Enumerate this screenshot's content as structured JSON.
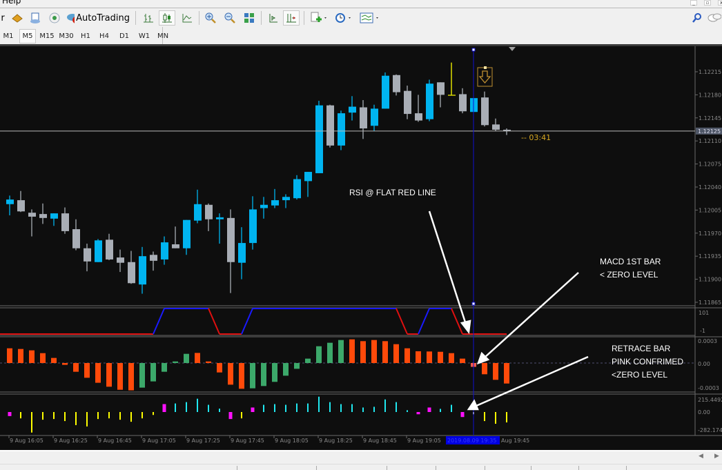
{
  "menubar": {
    "visible_item": "Help"
  },
  "toolbar": {
    "cut_label": "r",
    "autotrading_label": "AutoTrading",
    "icons": [
      "market-watch-icon",
      "navigator-icon",
      "signals-icon",
      "autotrading-icon",
      "bar-chart-icon",
      "candlestick-icon",
      "line-chart-icon",
      "zoom-in-icon",
      "zoom-out-icon",
      "tile-windows-icon",
      "chart-shift-icon",
      "autoscroll-icon",
      "indicators-icon",
      "periods-icon",
      "templates-icon",
      "search-icon",
      "chat-icon"
    ]
  },
  "timeframes": {
    "items": [
      "M1",
      "M5",
      "M15",
      "M30",
      "H1",
      "H4",
      "D1",
      "W1",
      "MN"
    ],
    "selected": "M5"
  },
  "chart": {
    "price_axis": [
      "1.12215",
      "1.12180",
      "1.12145",
      "1.12110",
      "1.12075",
      "1.12040",
      "1.12005",
      "1.11970",
      "1.11935",
      "1.11900",
      "1.11865"
    ],
    "bid_price": "1.12125",
    "bid_value": 1.12125,
    "countdown": "--  03:41",
    "colors": {
      "bull": "#00b4f0",
      "bear": "#a9aeb6",
      "doji": "#ffff00",
      "background": "#0e0e0e",
      "cursor_line": "#1010d0"
    },
    "time_axis": [
      "9 Aug 16:05",
      "9 Aug 16:25",
      "9 Aug 16:45",
      "9 Aug 17:05",
      "9 Aug 17:25",
      "9 Aug 17:45",
      "9 Aug 18:05",
      "9 Aug 18:25",
      "9 Aug 18:45",
      "9 Aug 19:05"
    ],
    "cursor_time": "2019.08.09 19:35",
    "time_axis_last": "Aug 19:45",
    "cursor_bar_index": 43,
    "sell_arrow_icon": "down-arrow-icon",
    "candles": [
      [
        1.12014,
        1.12027,
        1.11997,
        1.12021
      ],
      [
        1.1202,
        1.12034,
        1.12002,
        1.12003
      ],
      [
        1.12001,
        1.12006,
        1.11965,
        1.11995
      ],
      [
        1.11999,
        1.12015,
        1.11984,
        1.11993
      ],
      [
        1.11992,
        1.12,
        1.11981,
        1.12
      ],
      [
        1.12,
        1.12009,
        1.11969,
        1.11973
      ],
      [
        1.11976,
        1.11991,
        1.11944,
        1.11947
      ],
      [
        1.11947,
        1.11954,
        1.11912,
        1.11927
      ],
      [
        1.11926,
        1.11961,
        1.11926,
        1.11959
      ],
      [
        1.1196,
        1.11969,
        1.11929,
        1.1193
      ],
      [
        1.11933,
        1.11945,
        1.11911,
        1.11925
      ],
      [
        1.11926,
        1.11943,
        1.11893,
        1.11894
      ],
      [
        1.11892,
        1.11949,
        1.11878,
        1.11935
      ],
      [
        1.11937,
        1.11942,
        1.11913,
        1.11928
      ],
      [
        1.1193,
        1.11965,
        1.11922,
        1.11956
      ],
      [
        1.11953,
        1.1198,
        1.11947,
        1.11947
      ],
      [
        1.11947,
        1.1199,
        1.11937,
        1.1199
      ],
      [
        1.11989,
        1.12036,
        1.11985,
        1.12014
      ],
      [
        1.12013,
        1.12015,
        1.11973,
        1.11991
      ],
      [
        1.11991,
        1.12,
        1.11954,
        1.11994
      ],
      [
        1.11993,
        1.12006,
        1.11879,
        1.11926
      ],
      [
        1.11925,
        1.11979,
        1.119,
        1.11955
      ],
      [
        1.11955,
        1.12026,
        1.11945,
        1.12006
      ],
      [
        1.12008,
        1.12025,
        1.11992,
        1.12013
      ],
      [
        1.12012,
        1.12037,
        1.12008,
        1.1202
      ],
      [
        1.1202,
        1.12029,
        1.12008,
        1.12025
      ],
      [
        1.12023,
        1.12058,
        1.12021,
        1.12052
      ],
      [
        1.12049,
        1.12063,
        1.12025,
        1.12063
      ],
      [
        1.12061,
        1.12171,
        1.12061,
        1.12164
      ],
      [
        1.12164,
        1.12165,
        1.121,
        1.12103
      ],
      [
        1.12103,
        1.12156,
        1.12096,
        1.12152
      ],
      [
        1.12153,
        1.12178,
        1.12141,
        1.12162
      ],
      [
        1.12161,
        1.12172,
        1.12113,
        1.12129
      ],
      [
        1.12133,
        1.12165,
        1.12125,
        1.12159
      ],
      [
        1.12159,
        1.12214,
        1.12159,
        1.12209
      ],
      [
        1.1221,
        1.12211,
        1.12179,
        1.12184
      ],
      [
        1.12186,
        1.12194,
        1.12143,
        1.12151
      ],
      [
        1.12152,
        1.1218,
        1.12139,
        1.12141
      ],
      [
        1.12143,
        1.12203,
        1.1214,
        1.12197
      ],
      [
        1.12199,
        1.12199,
        1.12161,
        1.1218
      ],
      [
        1.1218,
        1.12229,
        1.1218,
        1.1218
      ],
      [
        1.12181,
        1.1219,
        1.12152,
        1.12155
      ],
      [
        1.12154,
        1.12175,
        1.12154,
        1.12175
      ],
      [
        1.12176,
        1.12185,
        1.12132,
        1.12134
      ],
      [
        1.12135,
        1.12144,
        1.12125,
        1.12127
      ],
      [
        1.12127,
        1.12129,
        1.12119,
        1.12125
      ]
    ]
  },
  "rsi_panel": {
    "axis": [
      "101",
      "-1"
    ],
    "values": [
      0,
      0,
      0,
      0,
      0,
      0,
      0,
      0,
      0,
      0,
      0,
      0,
      0,
      0,
      100,
      100,
      100,
      100,
      100,
      0,
      0,
      0,
      100,
      100,
      100,
      100,
      100,
      100,
      100,
      100,
      100,
      100,
      100,
      100,
      100,
      100,
      0,
      0,
      100,
      100,
      100,
      0,
      0,
      0,
      0,
      0
    ],
    "colors": {
      "up": "#1a1aff",
      "down": "#e01010"
    }
  },
  "macd_panel": {
    "axis": [
      "0.0003",
      "0.00",
      "-0.0003"
    ],
    "values": [
      0.000194,
      0.000185,
      0.000167,
      0.00013,
      6.7e-05,
      -2.4e-05,
      -0.000115,
      -0.000194,
      -0.00026,
      -0.000312,
      -0.000352,
      -0.00036,
      -0.000324,
      -0.000242,
      -0.000115,
      2.1e-05,
      0.000121,
      0.000133,
      2.1e-05,
      -0.000124,
      -0.000285,
      -0.000339,
      -0.000333,
      -0.000303,
      -0.000248,
      -0.000167,
      -7.6e-05,
      5.8e-05,
      0.000221,
      0.000267,
      0.000303,
      0.000312,
      0.000288,
      0.000303,
      0.000288,
      0.000248,
      0.000194,
      0.000155,
      0.000152,
      0.000148,
      0.00013,
      5.8e-05,
      -5e-05,
      -0.000148,
      -0.000221,
      -0.00027
    ],
    "colors": [
      "o",
      "o",
      "o",
      "o",
      "o",
      "o",
      "o",
      "o",
      "o",
      "o",
      "o",
      "o",
      "g",
      "g",
      "g",
      "g",
      "g",
      "o",
      "o",
      "o",
      "o",
      "o",
      "g",
      "g",
      "g",
      "g",
      "g",
      "g",
      "g",
      "g",
      "g",
      "o",
      "o",
      "o",
      "o",
      "o",
      "o",
      "o",
      "o",
      "o",
      "o",
      "o",
      "p",
      "o",
      "o",
      "o"
    ],
    "palette": {
      "o": "#ff4a0a",
      "g": "#3ca86a",
      "p": "#ff5a4a"
    }
  },
  "osc_panel": {
    "axis": [
      "215.4492",
      "0.00",
      "-282.174"
    ],
    "values": [
      -69,
      -108,
      -350,
      -131,
      -119,
      -154,
      -223,
      -246,
      -119,
      -108,
      -131,
      -166,
      -108,
      -50,
      135,
      146,
      169,
      227,
      123,
      58,
      -119,
      -108,
      77,
      123,
      135,
      123,
      146,
      146,
      262,
      169,
      135,
      135,
      77,
      89,
      215,
      169,
      31,
      -38,
      77,
      54,
      123,
      -85,
      -38,
      -154,
      -200,
      -177
    ],
    "colors": [
      "m",
      "y",
      "y",
      "y",
      "y",
      "y",
      "y",
      "y",
      "y",
      "y",
      "y",
      "y",
      "y",
      "y",
      "m",
      "c",
      "c",
      "c",
      "c",
      "c",
      "m",
      "y",
      "m",
      "c",
      "c",
      "c",
      "c",
      "c",
      "c",
      "c",
      "c",
      "c",
      "c",
      "c",
      "c",
      "c",
      "c",
      "m",
      "m",
      "c",
      "c",
      "m",
      "w",
      "y",
      "y",
      "y"
    ],
    "palette": {
      "y": "#ffff00",
      "c": "#20e8f0",
      "m": "#ff10ff",
      "w": "#f0f0c0"
    }
  },
  "annotations": {
    "rsi": "RSI @ FLAT RED LINE",
    "macd": [
      "MACD 1ST BAR",
      "< ZERO LEVEL"
    ],
    "retrace": [
      "RETRACE BAR",
      "PINK CONFRIMED",
      "<ZERO LEVEL"
    ]
  }
}
